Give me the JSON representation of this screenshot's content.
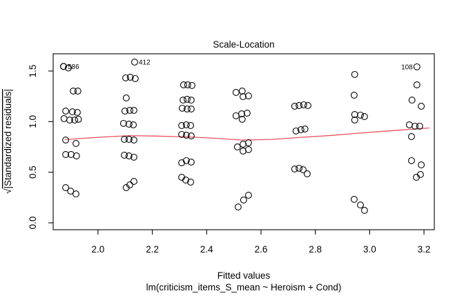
{
  "chart_data": {
    "type": "scatter",
    "title": "Scale-Location",
    "xlabel": "Fitted values",
    "sublabel": "lm(criticism_items_S_mean ~ Heroism + Cond)",
    "ylabel_radical": "√",
    "ylabel_text": "|Standardized residuals|",
    "xlim": [
      1.835,
      3.238
    ],
    "ylim": [
      -0.068,
      1.67
    ],
    "x_ticks": [
      2.0,
      2.2,
      2.4,
      2.6,
      2.8,
      3.0,
      3.2
    ],
    "x_tick_labels": [
      "2.0",
      "2.2",
      "2.4",
      "2.6",
      "2.8",
      "3.0",
      "3.2"
    ],
    "y_ticks": [
      0.0,
      0.5,
      1.0,
      1.5
    ],
    "y_tick_labels": [
      "0.0",
      "0.5",
      "1.0",
      "1.5"
    ],
    "grid": false,
    "legend": null,
    "point_style": {
      "shape": "open-circle",
      "color": "#000000",
      "radius_px": 4.4,
      "stroke_px": 1.1
    },
    "smoother_color": "#e8505e",
    "points": [
      [
        1.873,
        1.545
      ],
      [
        1.891,
        1.53
      ],
      [
        1.909,
        1.302
      ],
      [
        1.926,
        1.302
      ],
      [
        1.881,
        1.104
      ],
      [
        1.906,
        1.097
      ],
      [
        1.924,
        1.091
      ],
      [
        1.875,
        1.029
      ],
      [
        1.896,
        1.016
      ],
      [
        1.914,
        1.016
      ],
      [
        1.928,
        1.023
      ],
      [
        1.881,
        0.818
      ],
      [
        1.919,
        0.784
      ],
      [
        1.881,
        0.675
      ],
      [
        1.901,
        0.675
      ],
      [
        1.921,
        0.661
      ],
      [
        1.881,
        0.348
      ],
      [
        1.899,
        0.314
      ],
      [
        1.919,
        0.286
      ],
      [
        2.102,
        1.432
      ],
      [
        2.119,
        1.438
      ],
      [
        2.137,
        1.425
      ],
      [
        2.104,
        1.234
      ],
      [
        2.099,
        1.104
      ],
      [
        2.117,
        1.111
      ],
      [
        2.132,
        1.111
      ],
      [
        2.094,
        0.982
      ],
      [
        2.114,
        0.975
      ],
      [
        2.13,
        0.968
      ],
      [
        2.097,
        0.825
      ],
      [
        2.114,
        0.825
      ],
      [
        2.132,
        0.818
      ],
      [
        2.097,
        0.668
      ],
      [
        2.114,
        0.661
      ],
      [
        2.132,
        0.648
      ],
      [
        2.104,
        0.348
      ],
      [
        2.117,
        0.375
      ],
      [
        2.132,
        0.409
      ],
      [
        2.315,
        1.363
      ],
      [
        2.33,
        1.363
      ],
      [
        2.346,
        1.357
      ],
      [
        2.313,
        1.213
      ],
      [
        2.328,
        1.22
      ],
      [
        2.343,
        1.213
      ],
      [
        2.31,
        1.132
      ],
      [
        2.328,
        1.125
      ],
      [
        2.343,
        1.125
      ],
      [
        2.308,
        0.961
      ],
      [
        2.325,
        0.968
      ],
      [
        2.341,
        0.961
      ],
      [
        2.308,
        0.873
      ],
      [
        2.325,
        0.866
      ],
      [
        2.343,
        0.859
      ],
      [
        2.308,
        0.593
      ],
      [
        2.325,
        0.614
      ],
      [
        2.343,
        0.6
      ],
      [
        2.308,
        0.45
      ],
      [
        2.323,
        0.423
      ],
      [
        2.341,
        0.402
      ],
      [
        2.508,
        1.288
      ],
      [
        2.531,
        1.302
      ],
      [
        2.534,
        1.247
      ],
      [
        2.554,
        1.254
      ],
      [
        2.508,
        1.057
      ],
      [
        2.529,
        1.077
      ],
      [
        2.549,
        1.084
      ],
      [
        2.531,
        1.023
      ],
      [
        2.513,
        0.75
      ],
      [
        2.534,
        0.777
      ],
      [
        2.554,
        0.791
      ],
      [
        2.534,
        0.709
      ],
      [
        2.554,
        0.723
      ],
      [
        2.554,
        0.273
      ],
      [
        2.536,
        0.225
      ],
      [
        2.516,
        0.157
      ],
      [
        2.724,
        1.152
      ],
      [
        2.74,
        1.159
      ],
      [
        2.757,
        1.166
      ],
      [
        2.773,
        1.159
      ],
      [
        2.729,
        0.907
      ],
      [
        2.747,
        0.92
      ],
      [
        2.762,
        0.927
      ],
      [
        2.724,
        0.532
      ],
      [
        2.74,
        0.539
      ],
      [
        2.755,
        0.525
      ],
      [
        2.77,
        0.484
      ],
      [
        2.945,
        1.466
      ],
      [
        2.943,
        1.261
      ],
      [
        2.945,
        1.07
      ],
      [
        2.945,
        1.016
      ],
      [
        2.966,
        1.064
      ],
      [
        2.981,
        1.05
      ],
      [
        2.943,
        0.232
      ],
      [
        2.966,
        0.177
      ],
      [
        2.981,
        0.123
      ],
      [
        3.174,
        1.363
      ],
      [
        3.156,
        1.213
      ],
      [
        3.19,
        1.152
      ],
      [
        3.146,
        0.968
      ],
      [
        3.167,
        0.955
      ],
      [
        3.184,
        0.955
      ],
      [
        3.154,
        0.852
      ],
      [
        3.154,
        0.614
      ],
      [
        3.19,
        0.573
      ],
      [
        3.187,
        0.477
      ],
      [
        3.172,
        0.45
      ]
    ],
    "labeled_points": [
      {
        "label": "586",
        "x": 1.873,
        "y": 1.545,
        "side": "right"
      },
      {
        "label": "412",
        "x": 2.135,
        "y": 1.588,
        "side": "right"
      },
      {
        "label": "108",
        "x": 3.174,
        "y": 1.541,
        "side": "left"
      }
    ],
    "smoother": [
      [
        1.878,
        0.822
      ],
      [
        1.95,
        0.836
      ],
      [
        2.02,
        0.848
      ],
      [
        2.115,
        0.862
      ],
      [
        2.22,
        0.857
      ],
      [
        2.33,
        0.849
      ],
      [
        2.43,
        0.836
      ],
      [
        2.53,
        0.818
      ],
      [
        2.64,
        0.824
      ],
      [
        2.75,
        0.845
      ],
      [
        2.86,
        0.864
      ],
      [
        2.96,
        0.886
      ],
      [
        3.09,
        0.912
      ],
      [
        3.22,
        0.937
      ]
    ]
  }
}
